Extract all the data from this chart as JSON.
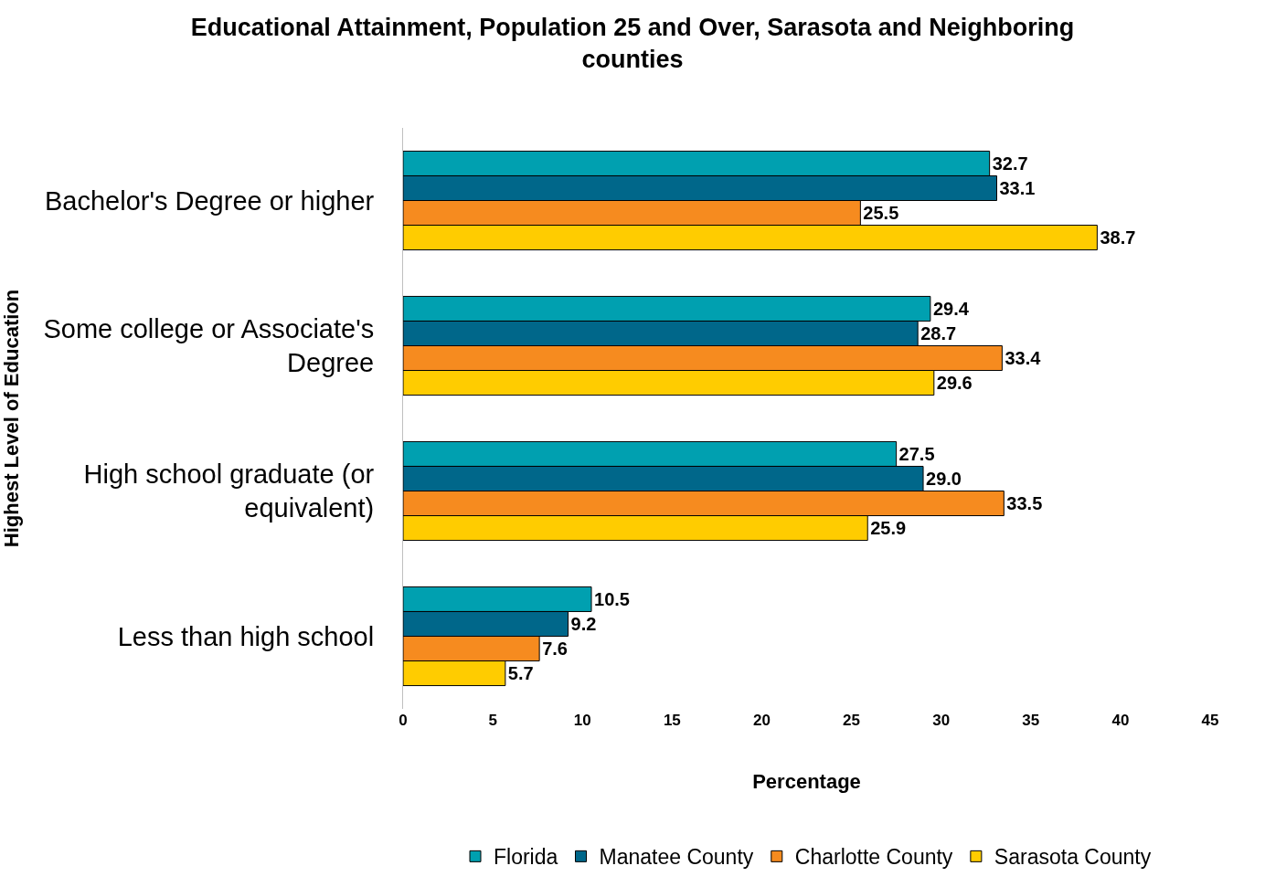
{
  "chart_data": {
    "type": "bar",
    "orientation": "horizontal",
    "title": "Educational Attainment, Population 25 and Over, Sarasota and Neighboring counties",
    "xlabel": "Percentage",
    "ylabel": "Highest Level of Education",
    "categories": [
      "Bachelor's Degree or higher",
      "Some college or Associate's Degree",
      "High school graduate (or equivalent)",
      "Less than high school"
    ],
    "series": [
      {
        "name": "Florida",
        "color": "#00a0b0",
        "values": [
          32.7,
          29.4,
          27.5,
          10.5
        ],
        "value_labels": [
          "32.7",
          "29.4",
          "27.5",
          "10.5"
        ]
      },
      {
        "name": "Manatee County",
        "color": "#00678a",
        "values": [
          33.1,
          28.7,
          29.0,
          9.2
        ],
        "value_labels": [
          "33.1",
          "28.7",
          "29.0",
          "9.2"
        ]
      },
      {
        "name": "Charlotte County",
        "color": "#f68b1f",
        "values": [
          25.5,
          33.4,
          33.5,
          7.6
        ],
        "value_labels": [
          "25.5",
          "33.4",
          "33.5",
          "7.6"
        ]
      },
      {
        "name": "Sarasota County",
        "color": "#ffcc00",
        "values": [
          38.7,
          29.6,
          25.9,
          5.7
        ],
        "value_labels": [
          "38.7",
          "29.6",
          "25.9",
          "5.7"
        ]
      }
    ],
    "xlim": [
      0,
      45
    ],
    "xticks": [
      0,
      5,
      10,
      15,
      20,
      25,
      30,
      35,
      40,
      45
    ],
    "legend": "bottom"
  }
}
